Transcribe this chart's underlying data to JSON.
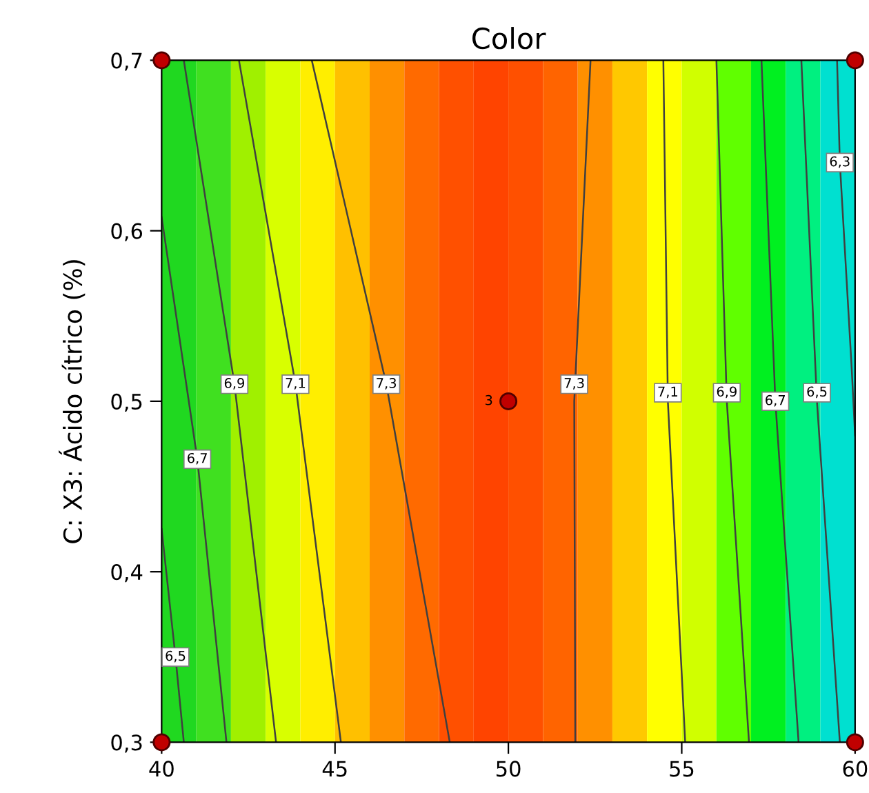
{
  "chart_data": {
    "type": "line",
    "title": "Color",
    "ylabel": "C: X3: Ácido cítrico (%)",
    "xlim": [
      40,
      60
    ],
    "ylim": [
      0.3,
      0.7
    ],
    "xticks": [
      40,
      45,
      50,
      55,
      60
    ],
    "yticks": [
      {
        "value": 0.3,
        "label": "0,3"
      },
      {
        "value": 0.4,
        "label": "0,4"
      },
      {
        "value": 0.5,
        "label": "0,5"
      },
      {
        "value": 0.6,
        "label": "0,6"
      },
      {
        "value": 0.7,
        "label": "0,7"
      }
    ],
    "grid": false,
    "legend": false,
    "line_style": "solid",
    "series": [
      {
        "color": "#404040",
        "x": [
          40,
          40.4,
          40.64
        ],
        "values": [
          0.425,
          0.35,
          0.3
        ]
      },
      {
        "color": "#404040",
        "x": [
          40,
          41.03,
          41.87
        ],
        "values": [
          0.608,
          0.466,
          0.3
        ]
      },
      {
        "color": "#404040",
        "x": [
          40.64,
          42.1,
          43.3
        ],
        "values": [
          0.7,
          0.51,
          0.3
        ]
      },
      {
        "color": "#404040",
        "x": [
          42.23,
          43.86,
          45.17
        ],
        "values": [
          0.7,
          0.51,
          0.3
        ]
      },
      {
        "color": "#404040",
        "x": [
          44.33,
          46.48,
          48.31
        ],
        "values": [
          0.7,
          0.51,
          0.3
        ]
      },
      {
        "color": "#404040",
        "x": [
          52.37,
          51.9,
          51.93
        ],
        "values": [
          0.7,
          0.5,
          0.3
        ]
      },
      {
        "color": "#404040",
        "x": [
          54.47,
          54.6,
          55.1
        ],
        "values": [
          0.7,
          0.5,
          0.3
        ]
      },
      {
        "color": "#404040",
        "x": [
          56.0,
          56.3,
          56.94
        ],
        "values": [
          0.7,
          0.5,
          0.3
        ]
      },
      {
        "color": "#404040",
        "x": [
          57.3,
          57.7,
          58.37
        ],
        "values": [
          0.7,
          0.5,
          0.3
        ]
      },
      {
        "color": "#404040",
        "x": [
          58.45,
          58.9,
          59.56
        ],
        "values": [
          0.7,
          0.5,
          0.3
        ]
      },
      {
        "color": "#404040",
        "x": [
          59.48,
          59.56,
          59.9,
          60
        ],
        "values": [
          0.7,
          0.64,
          0.52,
          0.48
        ]
      },
      {
        "type": "scatter",
        "marker": "circle",
        "color": "#c00000",
        "x": [
          40,
          40,
          60,
          60,
          50
        ],
        "values": [
          0.3,
          0.7,
          0.3,
          0.7,
          0.5
        ]
      }
    ],
    "annotations": [
      {
        "text": "6,5",
        "x": 40.4,
        "y": 0.35
      },
      {
        "text": "6,7",
        "x": 41.03,
        "y": 0.466
      },
      {
        "text": "6,9",
        "x": 42.1,
        "y": 0.51
      },
      {
        "text": "7,1",
        "x": 43.86,
        "y": 0.51
      },
      {
        "text": "7,3",
        "x": 46.48,
        "y": 0.51
      },
      {
        "text": "7,3",
        "x": 51.9,
        "y": 0.51
      },
      {
        "text": "7,1",
        "x": 54.6,
        "y": 0.505
      },
      {
        "text": "6,9",
        "x": 56.3,
        "y": 0.505
      },
      {
        "text": "6,7",
        "x": 57.7,
        "y": 0.5
      },
      {
        "text": "6,5",
        "x": 58.9,
        "y": 0.505
      },
      {
        "text": "6,3",
        "x": 59.56,
        "y": 0.64
      },
      {
        "text": "3",
        "x": 50,
        "y": 0.5
      }
    ],
    "bands": [
      {
        "axis": "x",
        "from": 40,
        "to": 41,
        "color": "#20d820"
      },
      {
        "axis": "x",
        "from": 41,
        "to": 42,
        "color": "#40e020"
      },
      {
        "axis": "x",
        "from": 42,
        "to": 43,
        "color": "#a0f000"
      },
      {
        "axis": "x",
        "from": 43,
        "to": 44,
        "color": "#d8ff00"
      },
      {
        "axis": "x",
        "from": 44,
        "to": 45,
        "color": "#ffee00"
      },
      {
        "axis": "x",
        "from": 45,
        "to": 46,
        "color": "#ffc000"
      },
      {
        "axis": "x",
        "from": 46,
        "to": 47,
        "color": "#ff9000"
      },
      {
        "axis": "x",
        "from": 47,
        "to": 48,
        "color": "#ff6a00"
      },
      {
        "axis": "x",
        "from": 48,
        "to": 49,
        "color": "#ff5000"
      },
      {
        "axis": "x",
        "from": 49,
        "to": 50,
        "color": "#ff4400"
      },
      {
        "axis": "x",
        "from": 50,
        "to": 51,
        "color": "#ff5000"
      },
      {
        "axis": "x",
        "from": 51,
        "to": 52,
        "color": "#ff6400"
      },
      {
        "axis": "x",
        "from": 52,
        "to": 53,
        "color": "#ff9000"
      },
      {
        "axis": "x",
        "from": 53,
        "to": 54,
        "color": "#ffc800"
      },
      {
        "axis": "x",
        "from": 54,
        "to": 55,
        "color": "#ffff00"
      },
      {
        "axis": "x",
        "from": 55,
        "to": 56,
        "color": "#d0ff00"
      },
      {
        "axis": "x",
        "from": 56,
        "to": 57,
        "color": "#60ff00"
      },
      {
        "axis": "x",
        "from": 57,
        "to": 58,
        "color": "#00f020"
      },
      {
        "axis": "x",
        "from": 58,
        "to": 59,
        "color": "#00f080"
      },
      {
        "axis": "x",
        "from": 59,
        "to": 60,
        "color": "#00e0d0"
      }
    ]
  }
}
